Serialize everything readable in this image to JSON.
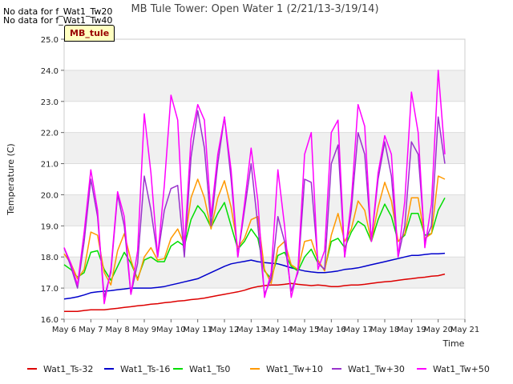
{
  "notes": [
    "No data for f_Wat1_Tw20",
    "No data for f_Wat1_Tw40"
  ],
  "badge": "MB_tule",
  "chart_data": {
    "type": "line",
    "title": "MB Tule Tower: Open Water 1 (2/21/13-3/19/14)",
    "xlabel": "Time",
    "ylabel": "Temperature (C)",
    "x_ticks": [
      "May 6",
      "May 7",
      "May 8",
      "May 9",
      "May 10",
      "May 11",
      "May 12",
      "May 13",
      "May 14",
      "May 15",
      "May 16",
      "May 17",
      "May 18",
      "May 19",
      "May 20",
      "May 21"
    ],
    "ylim": [
      16.0,
      25.0
    ],
    "y_ticks": [
      "16.0",
      "17.0",
      "18.0",
      "19.0",
      "20.0",
      "21.0",
      "22.0",
      "23.0",
      "24.0",
      "25.0"
    ],
    "grid_bands": true,
    "legend_position": "bottom",
    "x_days": [
      6.0,
      6.25,
      6.5,
      6.75,
      7.0,
      7.25,
      7.5,
      7.75,
      8.0,
      8.25,
      8.5,
      8.75,
      9.0,
      9.25,
      9.5,
      9.75,
      10.0,
      10.25,
      10.5,
      10.75,
      11.0,
      11.25,
      11.5,
      11.75,
      12.0,
      12.25,
      12.5,
      12.75,
      13.0,
      13.25,
      13.5,
      13.75,
      14.0,
      14.25,
      14.5,
      14.75,
      15.0,
      15.25,
      15.5,
      15.75,
      16.0,
      16.25,
      16.5,
      16.75,
      17.0,
      17.25,
      17.5,
      17.75,
      18.0,
      18.25,
      18.5,
      18.75,
      19.0,
      19.25,
      19.5,
      19.75,
      20.0,
      20.25
    ],
    "series": [
      {
        "name": "Wat1_Ts-32",
        "color": "#dd0000",
        "values": [
          16.25,
          16.25,
          16.25,
          16.28,
          16.3,
          16.3,
          16.3,
          16.33,
          16.35,
          16.38,
          16.4,
          16.43,
          16.45,
          16.48,
          16.5,
          16.53,
          16.55,
          16.58,
          16.6,
          16.63,
          16.65,
          16.68,
          16.72,
          16.76,
          16.8,
          16.84,
          16.88,
          16.93,
          17.0,
          17.05,
          17.08,
          17.1,
          17.1,
          17.12,
          17.15,
          17.12,
          17.1,
          17.08,
          17.1,
          17.08,
          17.05,
          17.05,
          17.08,
          17.1,
          17.1,
          17.12,
          17.15,
          17.18,
          17.2,
          17.22,
          17.25,
          17.28,
          17.3,
          17.33,
          17.35,
          17.38,
          17.4,
          17.45
        ]
      },
      {
        "name": "Wat1_Ts-16",
        "color": "#0000cc",
        "values": [
          16.65,
          16.68,
          16.72,
          16.78,
          16.85,
          16.88,
          16.9,
          16.92,
          16.95,
          16.97,
          17.0,
          17.0,
          17.0,
          17.0,
          17.02,
          17.05,
          17.1,
          17.15,
          17.2,
          17.25,
          17.3,
          17.4,
          17.5,
          17.6,
          17.7,
          17.78,
          17.82,
          17.86,
          17.9,
          17.85,
          17.82,
          17.8,
          17.78,
          17.72,
          17.65,
          17.6,
          17.55,
          17.52,
          17.5,
          17.5,
          17.52,
          17.55,
          17.6,
          17.62,
          17.65,
          17.7,
          17.75,
          17.8,
          17.85,
          17.9,
          17.95,
          18.0,
          18.05,
          18.05,
          18.08,
          18.1,
          18.1,
          18.12
        ]
      },
      {
        "name": "Wat1_Ts0",
        "color": "#00dd00",
        "values": [
          17.75,
          17.6,
          17.35,
          17.5,
          18.15,
          18.2,
          17.6,
          17.25,
          17.7,
          18.15,
          17.8,
          17.3,
          17.9,
          18.0,
          17.85,
          17.85,
          18.35,
          18.5,
          18.35,
          19.2,
          19.65,
          19.4,
          18.95,
          19.4,
          19.75,
          19.0,
          18.25,
          18.5,
          18.9,
          18.6,
          17.55,
          17.3,
          18.05,
          18.15,
          17.7,
          17.55,
          18.0,
          18.25,
          17.8,
          17.6,
          18.5,
          18.6,
          18.3,
          18.8,
          19.15,
          19.0,
          18.5,
          19.2,
          19.7,
          19.3,
          18.5,
          18.7,
          19.4,
          19.4,
          18.7,
          18.75,
          19.5,
          19.9
        ]
      },
      {
        "name": "Wat1_Tw+10",
        "color": "#ff9900",
        "values": [
          18.1,
          17.8,
          17.3,
          17.6,
          18.8,
          18.7,
          17.5,
          17.1,
          18.2,
          18.75,
          17.9,
          17.25,
          18.0,
          18.3,
          17.9,
          17.95,
          18.6,
          18.9,
          18.4,
          19.9,
          20.5,
          19.9,
          18.9,
          19.9,
          20.45,
          19.6,
          18.3,
          18.6,
          19.2,
          19.3,
          17.6,
          17.15,
          18.3,
          18.5,
          17.75,
          17.6,
          18.5,
          18.55,
          17.9,
          17.55,
          18.7,
          19.4,
          18.5,
          18.9,
          19.8,
          19.5,
          18.5,
          19.6,
          20.4,
          19.8,
          18.5,
          18.75,
          19.9,
          19.9,
          18.6,
          18.75,
          20.6,
          20.5
        ]
      },
      {
        "name": "Wat1_Tw+30",
        "color": "#9933cc",
        "values": [
          18.3,
          17.7,
          17.0,
          18.5,
          20.5,
          19.3,
          16.7,
          17.5,
          20.0,
          19.0,
          16.8,
          17.8,
          20.6,
          19.5,
          18.0,
          19.5,
          20.2,
          20.3,
          18.0,
          21.2,
          22.7,
          21.5,
          19.0,
          21.0,
          22.5,
          20.5,
          18.0,
          19.5,
          21.0,
          19.0,
          16.8,
          17.3,
          19.3,
          18.5,
          16.9,
          17.5,
          20.5,
          20.4,
          17.8,
          17.6,
          21.0,
          21.6,
          18.0,
          19.5,
          22.0,
          21.3,
          18.5,
          20.5,
          21.7,
          20.6,
          18.0,
          19.0,
          21.7,
          21.3,
          18.5,
          19.0,
          22.5,
          21.0
        ]
      },
      {
        "name": "Wat1_Tw+50",
        "color": "#ff00ff",
        "values": [
          18.3,
          17.8,
          17.1,
          18.8,
          20.8,
          19.5,
          16.5,
          17.6,
          20.1,
          19.3,
          16.8,
          18.2,
          22.6,
          20.7,
          18.0,
          20.3,
          23.2,
          22.4,
          18.3,
          21.8,
          22.9,
          22.4,
          19.3,
          21.3,
          22.5,
          20.8,
          18.0,
          19.7,
          21.5,
          19.8,
          16.7,
          17.5,
          20.8,
          19.0,
          16.7,
          17.6,
          21.3,
          22.0,
          17.6,
          18.2,
          22.0,
          22.4,
          18.0,
          19.8,
          22.9,
          22.2,
          18.5,
          20.7,
          21.9,
          21.3,
          18.0,
          19.8,
          23.3,
          22.0,
          18.3,
          19.7,
          24.0,
          21.3
        ]
      }
    ]
  }
}
